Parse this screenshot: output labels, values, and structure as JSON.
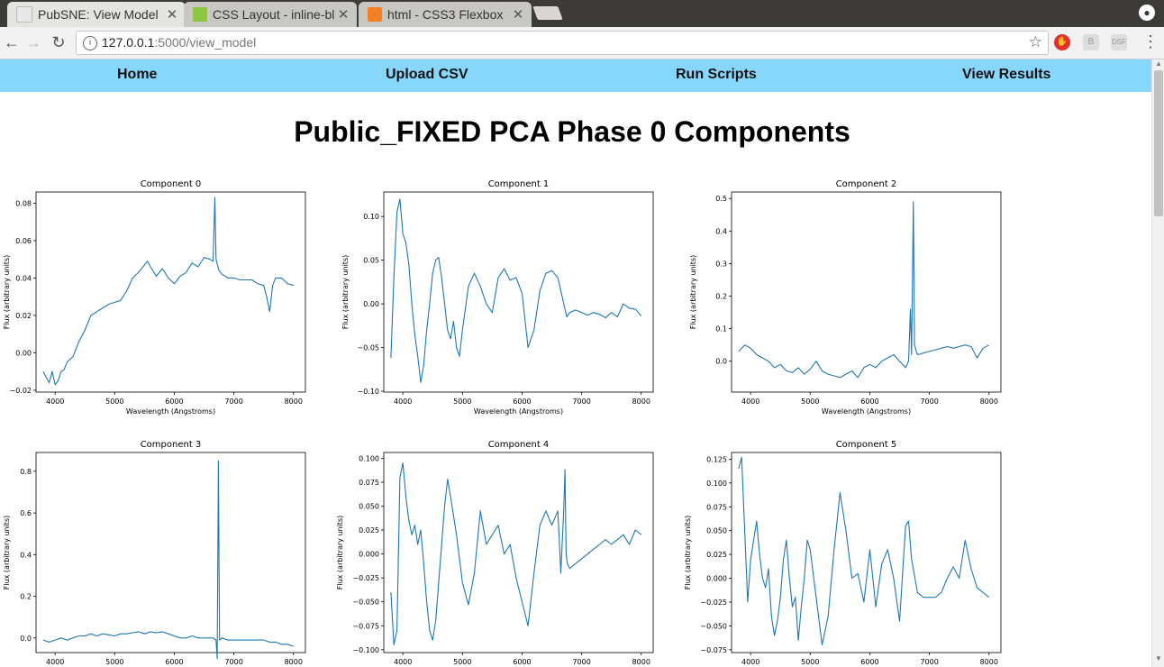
{
  "browser": {
    "tabs": [
      {
        "title": "PubSNE: View Model",
        "active": true,
        "favicon_color": "#e8e8e8"
      },
      {
        "title": "CSS Layout - inline-block",
        "active": false,
        "favicon_color": "#8ec641"
      },
      {
        "title": "html - CSS3 Flexbox",
        "active": false,
        "favicon_color": "#f48024"
      }
    ],
    "close_glyph": "✕",
    "url_host": "127.0.0.1",
    "url_path": ":5000/view_model",
    "info_glyph": "i",
    "star_glyph": "☆"
  },
  "nav": {
    "items": [
      "Home",
      "Upload CSV",
      "Run Scripts",
      "View Results"
    ]
  },
  "page": {
    "title": "Public_FIXED PCA Phase 0 Components"
  },
  "chart_data": [
    {
      "type": "line",
      "title": "Component 0",
      "xlabel": "Wavelength (Angstroms)",
      "ylabel": "Flux (arbitrary units)",
      "xlim": [
        3680,
        8200
      ],
      "ylim": [
        -0.021,
        0.086
      ],
      "xticks": [
        4000,
        5000,
        6000,
        7000,
        8000
      ],
      "yticks": [
        -0.02,
        0.0,
        0.02,
        0.04,
        0.06,
        0.08
      ],
      "ytick_labels": [
        "−0.02",
        "0.00",
        "0.02",
        "0.04",
        "0.06",
        "0.08"
      ],
      "x": [
        3800,
        3900,
        3950,
        4000,
        4050,
        4100,
        4150,
        4200,
        4300,
        4400,
        4500,
        4600,
        4700,
        4800,
        4900,
        5000,
        5100,
        5200,
        5300,
        5400,
        5500,
        5550,
        5600,
        5700,
        5800,
        5900,
        6000,
        6100,
        6200,
        6300,
        6400,
        6500,
        6600,
        6650,
        6680,
        6700,
        6750,
        6800,
        6900,
        7000,
        7100,
        7200,
        7300,
        7400,
        7500,
        7550,
        7600,
        7650,
        7700,
        7800,
        7900,
        8000
      ],
      "y": [
        -0.01,
        -0.016,
        -0.01,
        -0.017,
        -0.015,
        -0.01,
        -0.009,
        -0.005,
        -0.002,
        0.006,
        0.012,
        0.02,
        0.022,
        0.024,
        0.026,
        0.027,
        0.028,
        0.033,
        0.04,
        0.043,
        0.047,
        0.049,
        0.046,
        0.041,
        0.045,
        0.04,
        0.037,
        0.041,
        0.043,
        0.048,
        0.046,
        0.051,
        0.05,
        0.049,
        0.083,
        0.05,
        0.044,
        0.042,
        0.04,
        0.04,
        0.039,
        0.039,
        0.039,
        0.037,
        0.036,
        0.03,
        0.022,
        0.036,
        0.04,
        0.04,
        0.037,
        0.036
      ]
    },
    {
      "type": "line",
      "title": "Component 1",
      "xlabel": "Wavelength (Angstroms)",
      "ylabel": "Flux (arbitrary units)",
      "xlim": [
        3680,
        8200
      ],
      "ylim": [
        -0.101,
        0.128
      ],
      "xticks": [
        4000,
        5000,
        6000,
        7000,
        8000
      ],
      "yticks": [
        -0.1,
        -0.05,
        0.0,
        0.05,
        0.1
      ],
      "ytick_labels": [
        "−0.10",
        "−0.05",
        "0.00",
        "0.05",
        "0.10"
      ],
      "x": [
        3800,
        3850,
        3900,
        3950,
        4000,
        4050,
        4100,
        4150,
        4200,
        4250,
        4300,
        4350,
        4400,
        4450,
        4500,
        4550,
        4600,
        4650,
        4700,
        4750,
        4800,
        4850,
        4900,
        4950,
        5000,
        5100,
        5200,
        5300,
        5400,
        5500,
        5600,
        5700,
        5800,
        5900,
        6000,
        6100,
        6200,
        6300,
        6400,
        6500,
        6600,
        6700,
        6750,
        6800,
        6900,
        7000,
        7100,
        7200,
        7300,
        7400,
        7500,
        7600,
        7700,
        7800,
        7900,
        8000
      ],
      "y": [
        -0.062,
        0.03,
        0.105,
        0.12,
        0.08,
        0.07,
        0.045,
        0.0,
        -0.035,
        -0.06,
        -0.09,
        -0.07,
        -0.03,
        0.0,
        0.035,
        0.05,
        0.053,
        0.03,
        0.0,
        -0.03,
        -0.04,
        -0.02,
        -0.05,
        -0.06,
        -0.03,
        0.02,
        0.035,
        0.02,
        0.0,
        -0.01,
        0.03,
        0.04,
        0.027,
        0.03,
        0.012,
        -0.05,
        -0.03,
        0.015,
        0.035,
        0.038,
        0.03,
        0.0,
        -0.015,
        -0.01,
        -0.007,
        -0.01,
        -0.013,
        -0.01,
        -0.012,
        -0.016,
        -0.01,
        -0.015,
        0.0,
        -0.005,
        -0.006,
        -0.014
      ]
    },
    {
      "type": "line",
      "title": "Component 2",
      "xlabel": "Wavelength (Angstroms)",
      "ylabel": "Flux (arbitrary units)",
      "xlim": [
        3680,
        8200
      ],
      "ylim": [
        -0.095,
        0.52
      ],
      "xticks": [
        4000,
        5000,
        6000,
        7000,
        8000
      ],
      "yticks": [
        0.0,
        0.1,
        0.2,
        0.3,
        0.4,
        0.5
      ],
      "ytick_labels": [
        "0.0",
        "0.1",
        "0.2",
        "0.3",
        "0.4",
        "0.5"
      ],
      "x": [
        3800,
        3900,
        4000,
        4100,
        4200,
        4300,
        4400,
        4500,
        4600,
        4700,
        4800,
        4900,
        5000,
        5100,
        5200,
        5300,
        5400,
        5500,
        5600,
        5700,
        5800,
        5900,
        6000,
        6100,
        6200,
        6300,
        6400,
        6500,
        6600,
        6650,
        6680,
        6700,
        6730,
        6750,
        6780,
        6800,
        6900,
        7000,
        7100,
        7200,
        7300,
        7400,
        7500,
        7600,
        7700,
        7800,
        7900,
        8000
      ],
      "y": [
        0.03,
        0.05,
        0.04,
        0.02,
        0.01,
        0.0,
        -0.02,
        -0.01,
        -0.03,
        -0.035,
        -0.02,
        -0.04,
        -0.025,
        0.0,
        -0.03,
        -0.04,
        -0.045,
        -0.05,
        -0.04,
        -0.03,
        -0.05,
        -0.02,
        -0.01,
        -0.02,
        0.0,
        0.01,
        0.02,
        0.0,
        -0.02,
        0.0,
        0.16,
        0.02,
        0.49,
        0.05,
        0.03,
        0.02,
        0.025,
        0.03,
        0.035,
        0.04,
        0.045,
        0.04,
        0.045,
        0.05,
        0.045,
        0.01,
        0.04,
        0.05
      ]
    },
    {
      "type": "line",
      "title": "Component 3",
      "xlabel": "",
      "ylabel": "Flux (arbitrary units)",
      "xlim": [
        3680,
        8200
      ],
      "ylim": [
        -0.07,
        0.89
      ],
      "xticks": [
        4000,
        5000,
        6000,
        7000,
        8000
      ],
      "yticks": [
        0.0,
        0.2,
        0.4,
        0.6,
        0.8
      ],
      "ytick_labels": [
        "0.0",
        "0.2",
        "0.4",
        "0.6",
        "0.8"
      ],
      "x": [
        3800,
        3900,
        4000,
        4100,
        4200,
        4300,
        4400,
        4500,
        4600,
        4700,
        4800,
        4900,
        5000,
        5100,
        5200,
        5300,
        5400,
        5500,
        5600,
        5700,
        5800,
        5900,
        6000,
        6100,
        6200,
        6300,
        6400,
        6500,
        6600,
        6650,
        6700,
        6720,
        6740,
        6760,
        6800,
        6900,
        7000,
        7100,
        7200,
        7300,
        7400,
        7500,
        7600,
        7700,
        7800,
        7900,
        8000
      ],
      "y": [
        -0.01,
        -0.02,
        -0.01,
        0.0,
        -0.01,
        0.0,
        0.01,
        0.01,
        0.02,
        0.01,
        0.02,
        0.015,
        0.01,
        0.02,
        0.02,
        0.025,
        0.03,
        0.02,
        0.03,
        0.025,
        0.03,
        0.02,
        0.01,
        0.0,
        0.0,
        0.01,
        0.0,
        0.0,
        0.0,
        0.0,
        -0.01,
        -0.1,
        0.85,
        -0.01,
        0.0,
        -0.01,
        -0.01,
        -0.01,
        -0.01,
        -0.01,
        -0.01,
        -0.01,
        -0.02,
        -0.02,
        -0.03,
        -0.03,
        -0.04
      ]
    },
    {
      "type": "line",
      "title": "Component 4",
      "xlabel": "",
      "ylabel": "Flux (arbitrary units)",
      "xlim": [
        3680,
        8200
      ],
      "ylim": [
        -0.103,
        0.106
      ],
      "xticks": [
        4000,
        5000,
        6000,
        7000,
        8000
      ],
      "yticks": [
        -0.1,
        -0.075,
        -0.05,
        -0.025,
        0.0,
        0.025,
        0.05,
        0.075,
        0.1
      ],
      "ytick_labels": [
        "−0.100",
        "−0.075",
        "−0.050",
        "−0.025",
        "0.000",
        "0.025",
        "0.050",
        "0.075",
        "0.100"
      ],
      "x": [
        3800,
        3850,
        3900,
        3950,
        4000,
        4050,
        4100,
        4150,
        4200,
        4250,
        4300,
        4350,
        4400,
        4450,
        4500,
        4550,
        4600,
        4650,
        4700,
        4750,
        4800,
        4900,
        5000,
        5100,
        5200,
        5300,
        5400,
        5500,
        5600,
        5700,
        5800,
        5900,
        6000,
        6100,
        6200,
        6300,
        6400,
        6500,
        6600,
        6650,
        6700,
        6720,
        6740,
        6760,
        6800,
        6900,
        7000,
        7100,
        7200,
        7300,
        7400,
        7500,
        7600,
        7700,
        7800,
        7900,
        8000
      ],
      "y": [
        -0.04,
        -0.095,
        -0.08,
        0.08,
        0.095,
        0.06,
        0.035,
        0.02,
        0.03,
        0.01,
        0.025,
        -0.01,
        -0.05,
        -0.08,
        -0.09,
        -0.07,
        -0.03,
        0.01,
        0.05,
        0.078,
        0.06,
        0.02,
        -0.03,
        -0.053,
        -0.02,
        0.045,
        0.01,
        0.02,
        0.03,
        0.0,
        0.01,
        -0.025,
        -0.05,
        -0.075,
        -0.02,
        0.03,
        0.045,
        0.03,
        0.045,
        -0.02,
        0.048,
        0.088,
        0.0,
        -0.01,
        -0.015,
        -0.01,
        -0.005,
        0.0,
        0.005,
        0.01,
        0.015,
        0.01,
        0.015,
        0.02,
        0.01,
        0.025,
        0.02
      ]
    },
    {
      "type": "line",
      "title": "Component 5",
      "xlabel": "",
      "ylabel": "Flux (arbitrary units)",
      "xlim": [
        3680,
        8200
      ],
      "ylim": [
        -0.078,
        0.132
      ],
      "xticks": [
        4000,
        5000,
        6000,
        7000,
        8000
      ],
      "yticks": [
        -0.075,
        -0.05,
        -0.025,
        0.0,
        0.025,
        0.05,
        0.075,
        0.1,
        0.125
      ],
      "ytick_labels": [
        "−0.075",
        "−0.050",
        "−0.025",
        "0.000",
        "0.025",
        "0.050",
        "0.075",
        "0.100",
        "0.125"
      ],
      "x": [
        3800,
        3850,
        3900,
        3950,
        4000,
        4050,
        4100,
        4150,
        4200,
        4250,
        4300,
        4350,
        4400,
        4450,
        4500,
        4550,
        4600,
        4650,
        4700,
        4750,
        4800,
        4850,
        4900,
        4950,
        5000,
        5100,
        5200,
        5300,
        5400,
        5500,
        5600,
        5700,
        5800,
        5900,
        6000,
        6100,
        6200,
        6300,
        6400,
        6500,
        6600,
        6650,
        6700,
        6800,
        6900,
        7000,
        7100,
        7200,
        7300,
        7400,
        7500,
        7600,
        7700,
        7800,
        7900,
        8000
      ],
      "y": [
        0.115,
        0.127,
        0.05,
        -0.025,
        0.02,
        0.04,
        0.06,
        0.025,
        0.0,
        -0.01,
        0.01,
        -0.04,
        -0.06,
        -0.045,
        -0.02,
        0.02,
        0.04,
        0.0,
        -0.03,
        -0.02,
        -0.065,
        -0.03,
        0.0,
        0.04,
        0.03,
        -0.02,
        -0.07,
        -0.04,
        0.03,
        0.09,
        0.05,
        0.0,
        0.005,
        -0.025,
        0.03,
        -0.03,
        0.015,
        0.03,
        0.0,
        -0.045,
        0.055,
        0.06,
        0.02,
        -0.015,
        -0.02,
        -0.02,
        -0.02,
        -0.015,
        0.0,
        0.012,
        0.0,
        0.04,
        0.01,
        -0.01,
        -0.015,
        -0.02
      ]
    }
  ]
}
